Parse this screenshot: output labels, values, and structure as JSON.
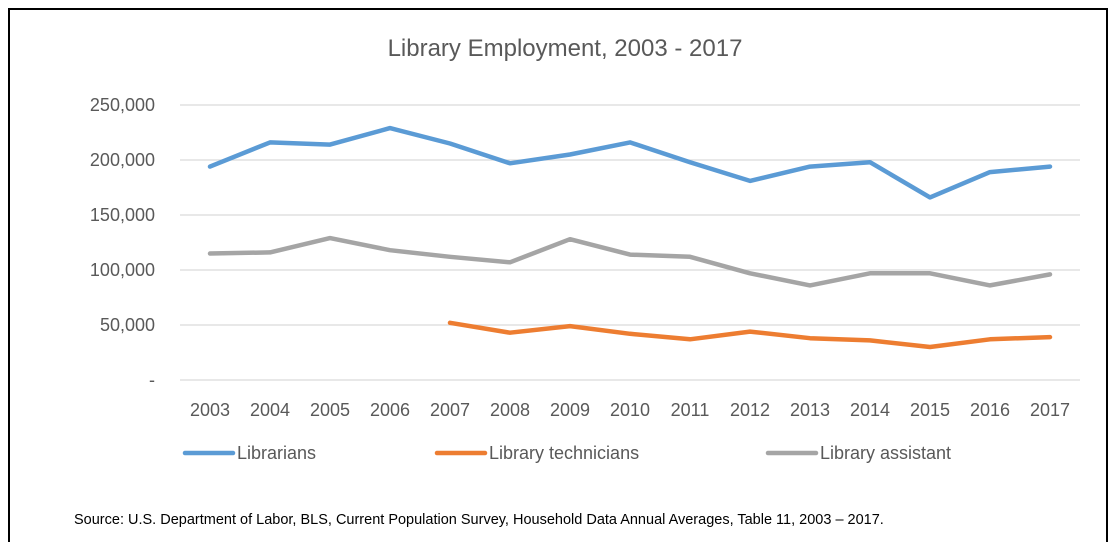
{
  "chart_data": {
    "type": "line",
    "title": "Library Employment, 2003 - 2017",
    "xlabel": "",
    "ylabel": "",
    "categories": [
      "2003",
      "2004",
      "2005",
      "2006",
      "2007",
      "2008",
      "2009",
      "2010",
      "2011",
      "2012",
      "2013",
      "2014",
      "2015",
      "2016",
      "2017"
    ],
    "y_ticks": [
      "-",
      "50,000",
      "100,000",
      "150,000",
      "200,000",
      "250,000"
    ],
    "ylim": [
      0,
      250000
    ],
    "grid": true,
    "legend_position": "bottom",
    "series": [
      {
        "name": "Librarians",
        "color": "#5B9BD5",
        "values": [
          194000,
          216000,
          214000,
          229000,
          215000,
          197000,
          205000,
          216000,
          198000,
          181000,
          194000,
          198000,
          166000,
          189000,
          194000
        ]
      },
      {
        "name": "Library technicians",
        "color": "#ED7D31",
        "values": [
          null,
          null,
          null,
          null,
          52000,
          43000,
          49000,
          42000,
          37000,
          44000,
          38000,
          36000,
          30000,
          37000,
          39000
        ]
      },
      {
        "name": "Library assistant",
        "color": "#A5A5A5",
        "values": [
          115000,
          116000,
          129000,
          118000,
          112000,
          107000,
          128000,
          114000,
          112000,
          97000,
          86000,
          97000,
          97000,
          86000,
          96000
        ]
      }
    ]
  },
  "source": "Source: U.S. Department of Labor, BLS, Current Population Survey, Household Data Annual Averages, Table 11, 2003 – 2017."
}
